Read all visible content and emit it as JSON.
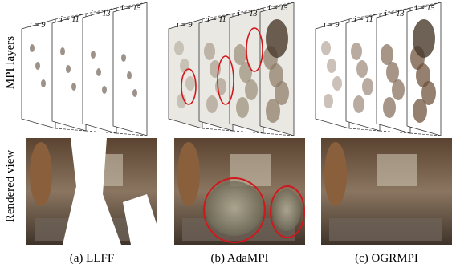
{
  "row_labels": [
    "MPI layers",
    "Rendered view"
  ],
  "panels": [
    {
      "caption": "(a) LLFF",
      "layers": [
        "i = 9",
        "i = 11",
        "i = 13",
        "i = 15"
      ]
    },
    {
      "caption": "(b) AdaMPI",
      "layers": [
        "i = 9",
        "i = 11",
        "i = 13",
        "i = 15"
      ]
    },
    {
      "caption": "(c) OGRMPI",
      "layers": [
        "i = 9",
        "i = 11",
        "i = 13",
        "i = 15"
      ]
    }
  ]
}
